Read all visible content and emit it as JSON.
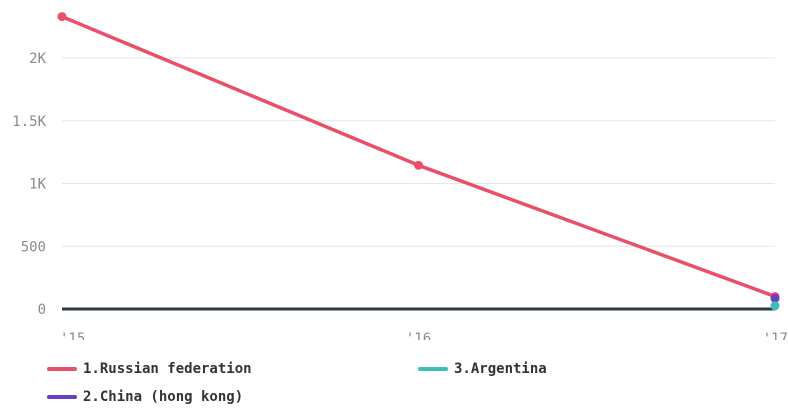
{
  "chart_data": {
    "type": "line",
    "categories": [
      "'15",
      "'16",
      "'17"
    ],
    "ylim": [
      0,
      2400
    ],
    "yticks": [
      0,
      500,
      1000,
      1500,
      2000
    ],
    "ytick_labels": [
      "0",
      "500",
      "1K",
      "1.5K",
      "2K"
    ],
    "grid": true,
    "legend_position": "bottom-left",
    "series": [
      {
        "name": "1.Russian federation",
        "color": "#e8506a",
        "values": [
          2330,
          1145,
          100
        ]
      },
      {
        "name": "2.China (hong kong)",
        "color": "#6b3fbf",
        "values": [
          null,
          null,
          85
        ]
      },
      {
        "name": "3.Argentina",
        "color": "#3dbdb5",
        "values": [
          null,
          null,
          25
        ]
      }
    ]
  }
}
